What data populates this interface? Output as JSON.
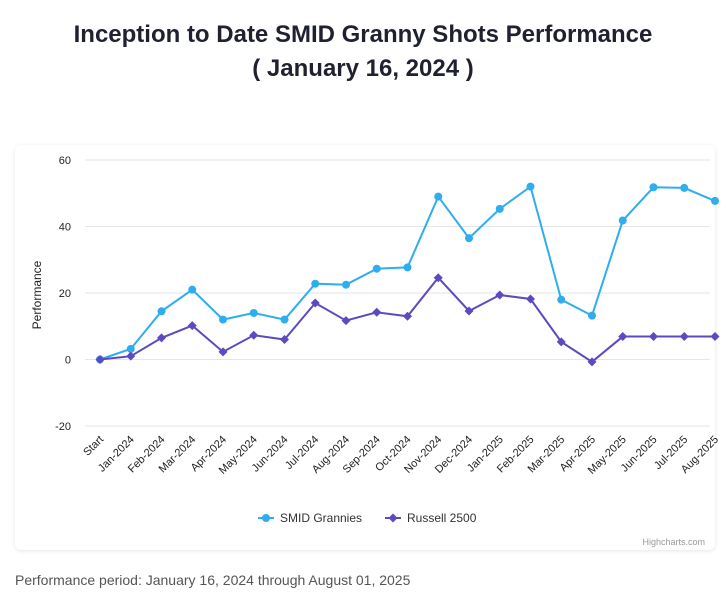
{
  "header": {
    "title": "Inception to Date SMID Granny Shots Performance",
    "subtitle": "( January 16, 2024 )"
  },
  "footer": {
    "note": "Performance period: January 16, 2024 through August 01, 2025"
  },
  "credits": "Highcharts.com",
  "colors": {
    "smid": "#2EADEF",
    "russell": "#5B4BC1",
    "grid": "#e6e6e6",
    "axis_text": "#222222"
  },
  "chart_data": {
    "type": "line",
    "title": "Inception to Date SMID Granny Shots Performance",
    "subtitle": "( January 16, 2024 )",
    "xlabel": "",
    "ylabel": "Performance",
    "ylim": [
      -20,
      60
    ],
    "yticks": [
      -20,
      0,
      20,
      40,
      60
    ],
    "grid": true,
    "legend_position": "bottom-center",
    "categories": [
      "Start",
      "Jan-2024",
      "Feb-2024",
      "Mar-2024",
      "Apr-2024",
      "May-2024",
      "Jun-2024",
      "Jul-2024",
      "Aug-2024",
      "Sep-2024",
      "Oct-2024",
      "Nov-2024",
      "Dec-2024",
      "Jan-2025",
      "Feb-2025",
      "Mar-2025",
      "Apr-2025",
      "May-2025",
      "Jun-2025",
      "Jul-2025",
      "Aug-2025"
    ],
    "series": [
      {
        "name": "SMID Grannies",
        "marker": "circle",
        "values": [
          0,
          3.2,
          14.5,
          21.0,
          12.0,
          14.0,
          12.0,
          22.8,
          22.5,
          27.3,
          27.7,
          49.0,
          36.5,
          45.3,
          52.0,
          18.0,
          13.2,
          41.8,
          51.8,
          51.6,
          47.7
        ]
      },
      {
        "name": "Russell 2500",
        "marker": "diamond",
        "values": [
          0,
          1.0,
          6.5,
          10.2,
          2.3,
          7.3,
          6.0,
          17.0,
          11.7,
          14.2,
          13.0,
          24.6,
          14.6,
          19.4,
          18.2,
          5.3,
          -0.7,
          6.9,
          6.9,
          6.9,
          6.9
        ]
      }
    ]
  }
}
